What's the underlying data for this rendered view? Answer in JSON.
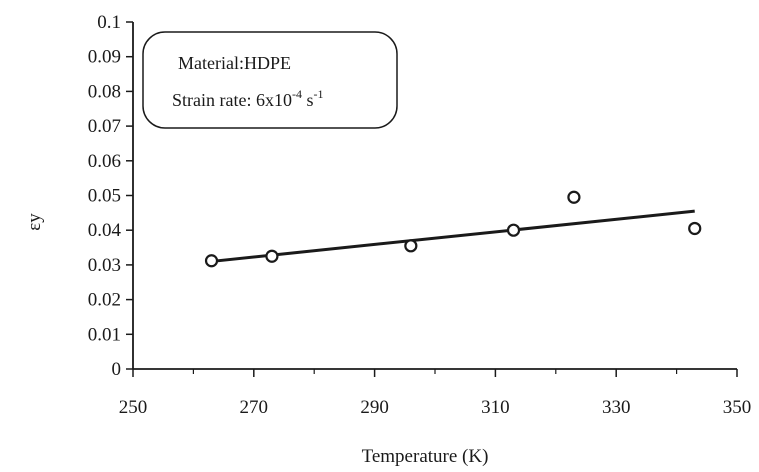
{
  "chart_data": {
    "type": "scatter",
    "xlabel": "Temperature (K)",
    "ylabel": "εy",
    "xlim": [
      250,
      350
    ],
    "ylim": [
      0,
      0.1
    ],
    "x_ticks": [
      "250",
      "270",
      "290",
      "310",
      "330",
      "350"
    ],
    "y_ticks": [
      "0",
      "0.01",
      "0.02",
      "0.03",
      "0.04",
      "0.05",
      "0.06",
      "0.07",
      "0.08",
      "0.09",
      "0.1"
    ],
    "grid": false,
    "legend": {
      "placement": "top-left",
      "material": "Material:HDPE",
      "strain_rate_prefix": "Strain rate: 6x10",
      "strain_rate_exp": "-4",
      "strain_rate_unit": " s",
      "strain_rate_unit_exp": "-1"
    },
    "series": [
      {
        "marker": "open-circle",
        "x": [
          263,
          273,
          296,
          313,
          323,
          343
        ],
        "y": [
          0.0312,
          0.0325,
          0.0355,
          0.04,
          0.0495,
          0.0405
        ]
      }
    ],
    "trendline": {
      "x": [
        263,
        343
      ],
      "y": [
        0.031,
        0.0455
      ]
    },
    "colors": {
      "ink": "#1a1a1a",
      "background": "#ffffff"
    }
  }
}
